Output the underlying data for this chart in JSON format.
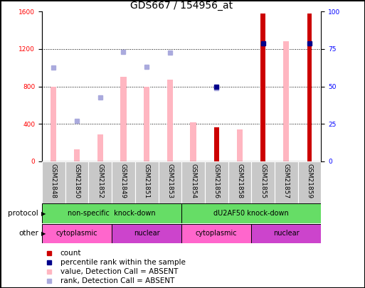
{
  "title": "GDS667 / 154956_at",
  "samples": [
    "GSM21848",
    "GSM21850",
    "GSM21852",
    "GSM21849",
    "GSM21851",
    "GSM21853",
    "GSM21854",
    "GSM21856",
    "GSM21858",
    "GSM21855",
    "GSM21857",
    "GSM21859"
  ],
  "pink_bars": [
    800,
    130,
    290,
    900,
    800,
    870,
    420,
    0,
    340,
    0,
    1280,
    0
  ],
  "red_bars": [
    0,
    0,
    0,
    0,
    0,
    0,
    0,
    360,
    0,
    1580,
    0,
    1580
  ],
  "blue_dots": [
    null,
    null,
    null,
    null,
    null,
    null,
    null,
    800,
    null,
    1260,
    null,
    1260
  ],
  "lightblue_dots": [
    1000,
    430,
    680,
    1170,
    1010,
    1160,
    null,
    780,
    null,
    null,
    null,
    null
  ],
  "ylim_left": [
    0,
    1600
  ],
  "ylim_right": [
    0,
    100
  ],
  "yticks_left": [
    0,
    400,
    800,
    1200,
    1600
  ],
  "yticks_right": [
    0,
    25,
    50,
    75,
    100
  ],
  "protocol_groups": [
    {
      "label": "non-specific  knock-down",
      "start": 0,
      "end": 6
    },
    {
      "label": "dU2AF50 knock-down",
      "start": 6,
      "end": 12
    }
  ],
  "other_groups": [
    {
      "label": "cytoplasmic",
      "start": 0,
      "end": 3
    },
    {
      "label": "nuclear",
      "start": 3,
      "end": 6
    },
    {
      "label": "cytoplasmic",
      "start": 6,
      "end": 9
    },
    {
      "label": "nuclear",
      "start": 9,
      "end": 12
    }
  ],
  "pink_bar_color": "#FFB6C1",
  "red_bar_color": "#CC0000",
  "blue_dot_color": "#00008B",
  "lightblue_dot_color": "#AAAADD",
  "green_color": "#66DD66",
  "cyt_color": "#FF66CC",
  "nuc_color": "#CC44CC",
  "gray_color": "#C8C8C8",
  "title_fontsize": 10,
  "tick_fontsize": 6.5,
  "bar_width": 0.25
}
